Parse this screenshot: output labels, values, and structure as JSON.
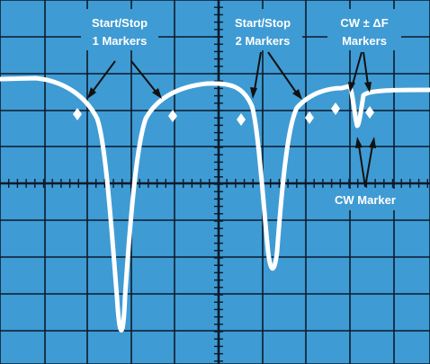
{
  "labels": {
    "start_stop_1_line1": "Start/Stop",
    "start_stop_1_line2": "1 Markers",
    "start_stop_2_line1": "Start/Stop",
    "start_stop_2_line2": "2 Markers",
    "cw_df_line1": "CW ± ΔF",
    "cw_df_line2": "Markers",
    "cw_marker": "CW Marker"
  },
  "colors": {
    "screen": "#3f9bd3",
    "grid": "#0c1a2c",
    "trace": "#ffffff"
  }
}
